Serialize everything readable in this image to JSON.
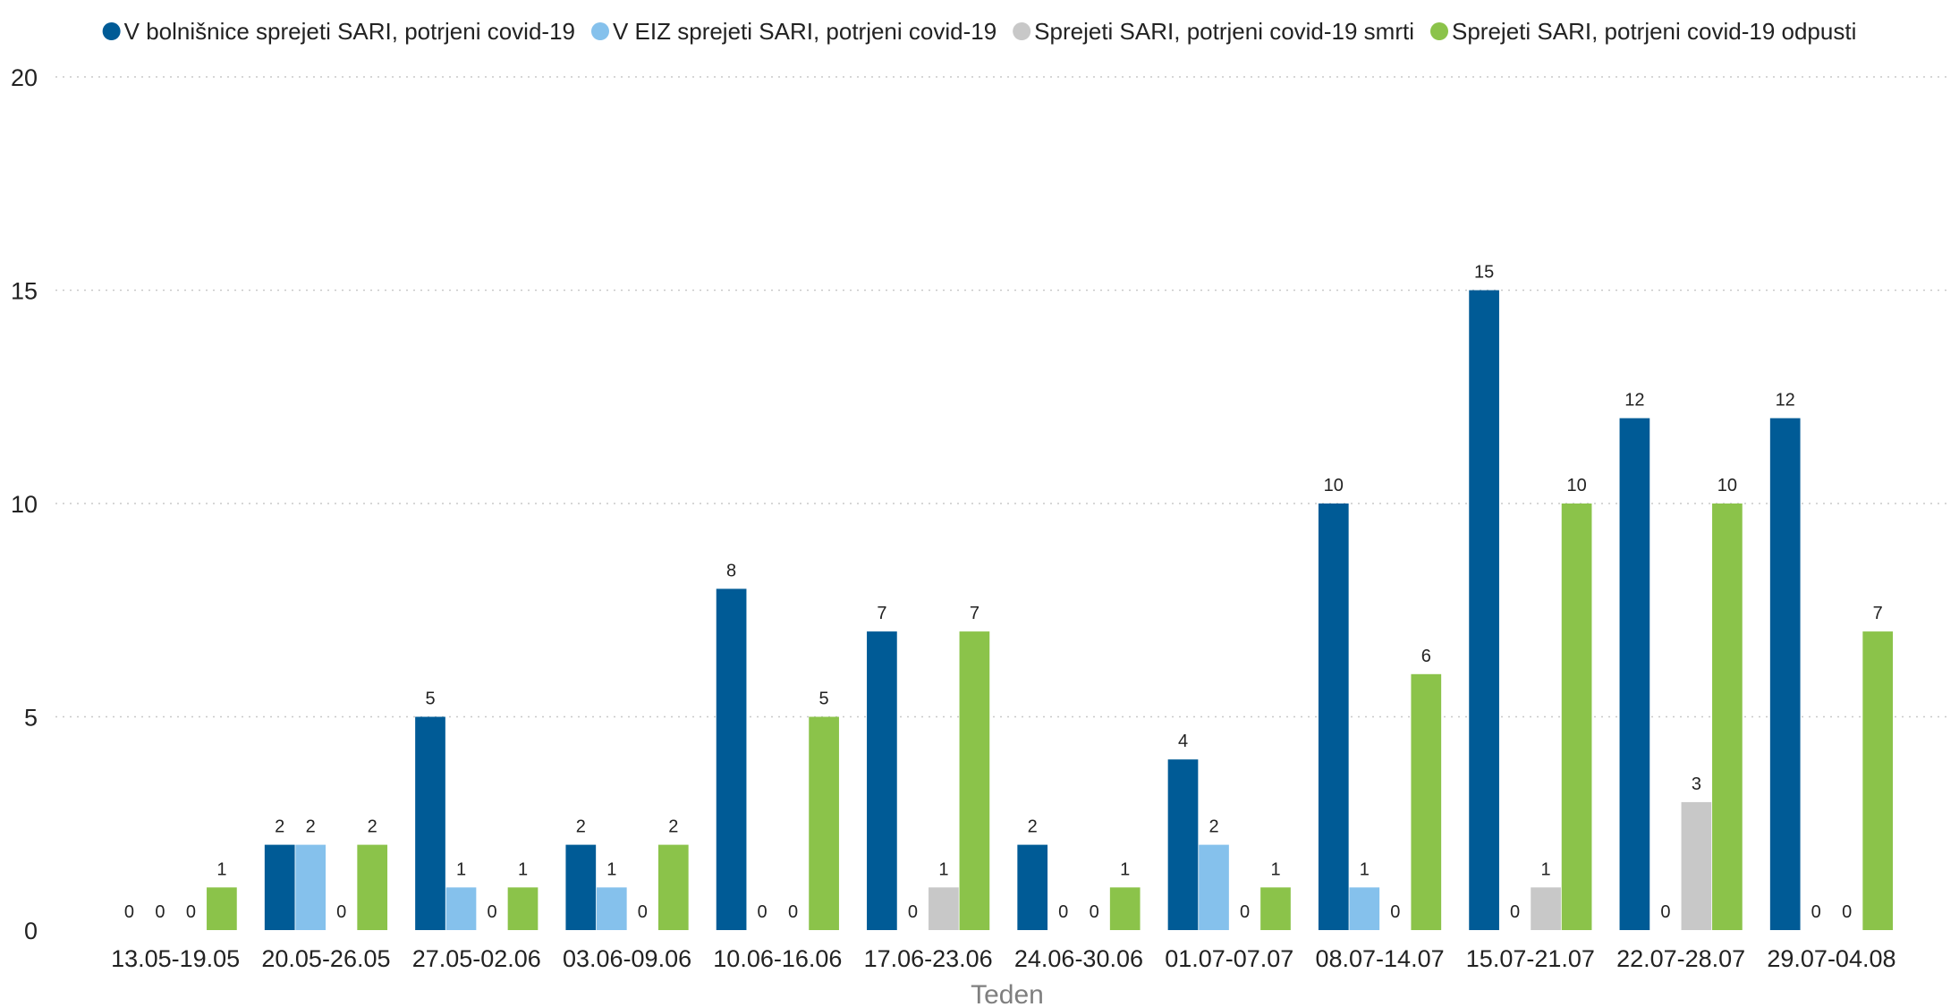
{
  "chart_data": {
    "type": "bar",
    "title": "",
    "xlabel": "Teden",
    "ylabel": "",
    "ylim": [
      0,
      20
    ],
    "yticks": [
      0,
      5,
      10,
      15,
      20
    ],
    "grid": true,
    "legend_position": "top",
    "categories": [
      "13.05-19.05",
      "20.05-26.05",
      "27.05-02.06",
      "03.06-09.06",
      "10.06-16.06",
      "17.06-23.06",
      "24.06-30.06",
      "01.07-07.07",
      "08.07-14.07",
      "15.07-21.07",
      "22.07-28.07",
      "29.07-04.08"
    ],
    "series": [
      {
        "name": "V bolnišnice sprejeti SARI, potrjeni covid-19",
        "color": "#005b96",
        "values": [
          0,
          2,
          5,
          2,
          8,
          7,
          2,
          4,
          10,
          15,
          12,
          12
        ]
      },
      {
        "name": "V EIZ sprejeti SARI, potrjeni covid-19",
        "color": "#85c1ec",
        "values": [
          0,
          2,
          1,
          1,
          0,
          0,
          0,
          2,
          1,
          0,
          0,
          0
        ]
      },
      {
        "name": "Sprejeti SARI, potrjeni covid-19 smrti",
        "color": "#c8c8c8",
        "values": [
          0,
          0,
          0,
          0,
          0,
          1,
          0,
          0,
          0,
          1,
          3,
          0
        ]
      },
      {
        "name": "Sprejeti SARI, potrjeni covid-19 odpusti",
        "color": "#8bc34a",
        "values": [
          1,
          2,
          1,
          2,
          5,
          7,
          1,
          1,
          6,
          10,
          10,
          7
        ]
      }
    ]
  }
}
